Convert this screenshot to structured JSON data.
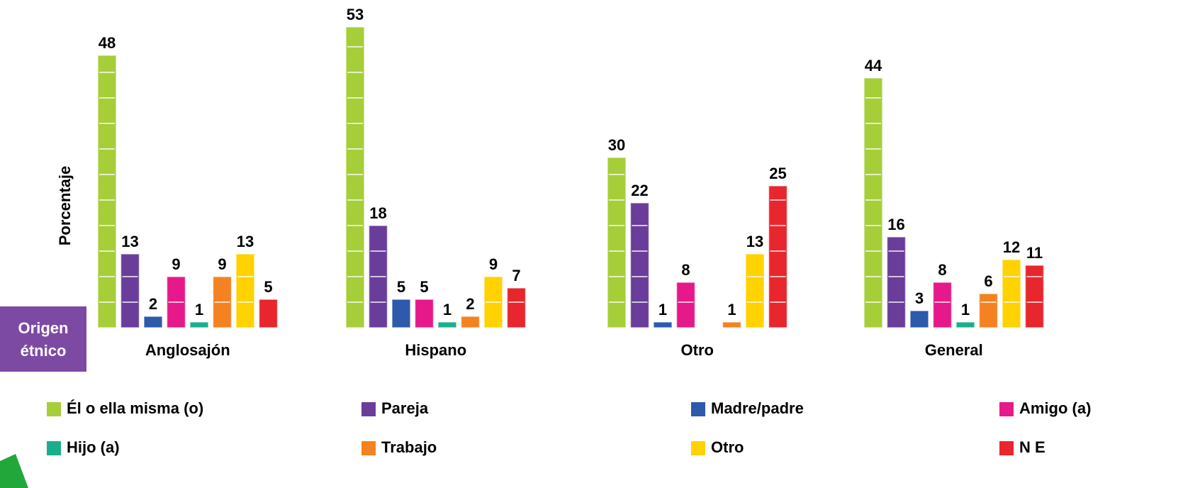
{
  "chart_data": {
    "type": "bar",
    "y_label": "Porcentaje",
    "x_label": "Origen étnico",
    "categories": [
      "Anglosajón",
      "Hispano",
      "Otro",
      "General"
    ],
    "series": [
      {
        "name": "Él o ella misma (o)",
        "color": "#a6ce39",
        "values": [
          48,
          53,
          30,
          44
        ]
      },
      {
        "name": "Pareja",
        "color": "#6a3d9a",
        "values": [
          13,
          18,
          22,
          16
        ]
      },
      {
        "name": "Madre/padre",
        "color": "#2e5aac",
        "values": [
          2,
          5,
          1,
          3
        ]
      },
      {
        "name": "Amigo (a)",
        "color": "#e6198a",
        "values": [
          9,
          5,
          8,
          8
        ]
      },
      {
        "name": "Hijo (a)",
        "color": "#1aaf8c",
        "values": [
          1,
          1,
          null,
          1
        ]
      },
      {
        "name": "Trabajo",
        "color": "#f58220",
        "values": [
          9,
          2,
          1,
          6
        ]
      },
      {
        "name": "Otro",
        "color": "#ffd200",
        "values": [
          13,
          9,
          13,
          12
        ]
      },
      {
        "name": "N E",
        "color": "#e8262d",
        "values": [
          5,
          7,
          25,
          11
        ]
      }
    ],
    "legend": "bottom"
  }
}
